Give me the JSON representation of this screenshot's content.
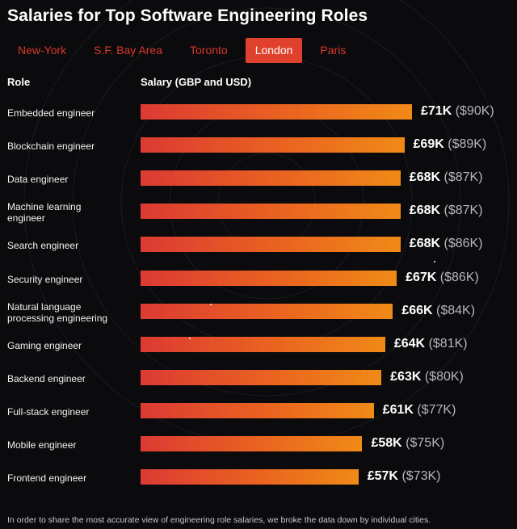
{
  "chart_data": {
    "type": "bar",
    "orientation": "horizontal",
    "title": "Salaries for Top Software Engineering Roles",
    "role_header": "Role",
    "salary_header": "Salary (GBP and USD)",
    "categories": [
      [
        "Embedded engineer"
      ],
      [
        "Blockchain engineer"
      ],
      [
        "Data engineer"
      ],
      [
        "Machine learning",
        "engineer"
      ],
      [
        "Search engineer"
      ],
      [
        "Security engineer"
      ],
      [
        "Natural language",
        "processing engineering"
      ],
      [
        "Gaming engineer"
      ],
      [
        "Backend engineer"
      ],
      [
        "Full-stack engineer"
      ],
      [
        "Mobile engineer"
      ],
      [
        "Frontend engineer"
      ]
    ],
    "series": [
      {
        "name": "GBP (thousands)",
        "values": [
          71,
          69,
          68,
          68,
          68,
          67,
          66,
          64,
          63,
          61,
          58,
          57
        ],
        "labels": [
          "£71K",
          "£69K",
          "£68K",
          "£68K",
          "£68K",
          "£67K",
          "£66K",
          "£64K",
          "£63K",
          "£61K",
          "£58K",
          "£57K"
        ]
      },
      {
        "name": "USD (thousands)",
        "values": [
          90,
          89,
          87,
          87,
          86,
          86,
          84,
          81,
          80,
          77,
          75,
          73
        ],
        "labels": [
          "($90K)",
          "($89K)",
          "($87K)",
          "($87K)",
          "($86K)",
          "($86K)",
          "($84K)",
          "($81K)",
          "($80K)",
          "($77K)",
          "($75K)",
          "($73K)"
        ]
      }
    ],
    "xlim": [
      0,
      71
    ]
  },
  "tabs": [
    "New-York",
    "S.F. Bay Area",
    "Toronto",
    "London",
    "Paris"
  ],
  "active_tab": 3,
  "footnote": "In order to share the most accurate view of engineering role salaries, we broke the data down by individual cities.",
  "colors": {
    "accent": "#e0412e",
    "bar_start": "#dc3a33",
    "bar_end": "#f08a17",
    "background": "#0b0a0d"
  }
}
